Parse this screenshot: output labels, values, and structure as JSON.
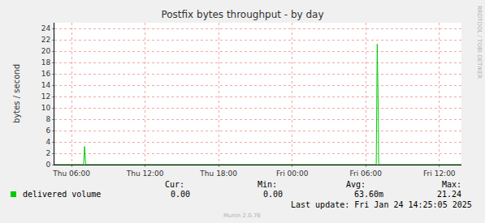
{
  "chart_data": {
    "type": "line",
    "title": "Postfix bytes throughput - by day",
    "y_label": "bytes / second",
    "x": [
      4.6,
      6.98,
      7.06,
      7.15,
      30.85,
      30.93,
      31.0,
      31.05,
      37.8
    ],
    "series": [
      {
        "name": "delivered volume",
        "color": "#00cc00",
        "values": [
          0,
          0,
          3.2,
          0,
          0,
          21.24,
          12,
          0,
          0
        ],
        "stats": [
          {
            "label": "Cur:",
            "value": "0.00"
          },
          {
            "label": "Min:",
            "value": "0.00"
          },
          {
            "label": "Avg:",
            "value": "63.60m"
          },
          {
            "label": "Max:",
            "value": "21.24"
          }
        ]
      }
    ],
    "xlim": [
      4.6,
      37.8
    ],
    "xticks": [
      {
        "value": 6,
        "label": "Thu 06:00"
      },
      {
        "value": 12,
        "label": "Thu 12:00"
      },
      {
        "value": 18,
        "label": "Thu 18:00"
      },
      {
        "value": 24,
        "label": "Fri 00:00"
      },
      {
        "value": 30,
        "label": "Fri 06:00"
      },
      {
        "value": 36,
        "label": "Fri 12:00"
      }
    ],
    "ylim": [
      0,
      25
    ],
    "yticks": [
      0,
      2,
      4,
      6,
      8,
      10,
      12,
      14,
      16,
      18,
      20,
      22,
      24
    ],
    "grid": true,
    "last_update": "Last update: Fri Jan 24 14:25:05 2025",
    "footer": "Munin 2.0.76",
    "watermark": "RRDTOOL / TOBI OETIKER"
  }
}
